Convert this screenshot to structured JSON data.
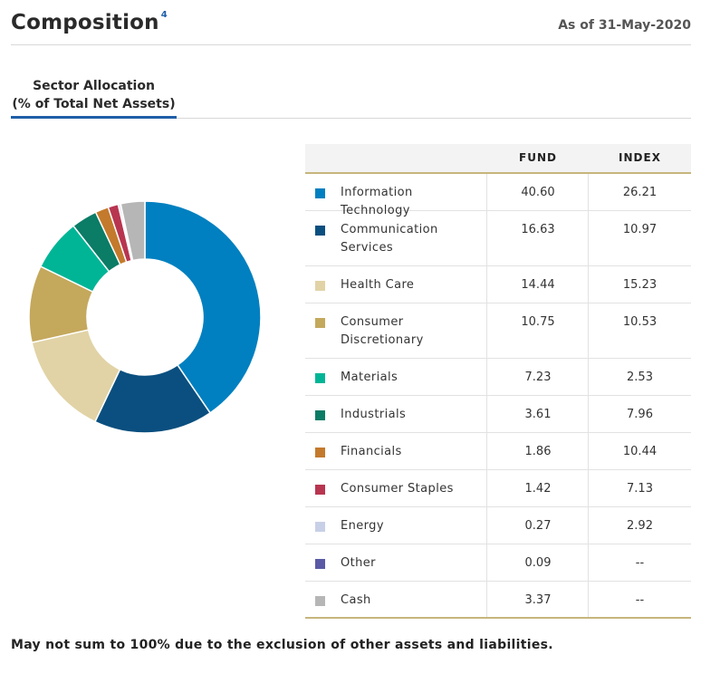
{
  "header": {
    "title": "Composition",
    "footnote_ref": "4",
    "as_of": "As of 31-May-2020"
  },
  "tab": {
    "line1": "Sector Allocation",
    "line2": "(% of Total Net Assets)"
  },
  "table": {
    "col_fund": "FUND",
    "col_index": "INDEX"
  },
  "chart_data": {
    "type": "pie",
    "style": "donut",
    "categories": [
      "Information Technology",
      "Communication Services",
      "Health Care",
      "Consumer Discretionary",
      "Materials",
      "Industrials",
      "Financials",
      "Consumer Staples",
      "Energy",
      "Other",
      "Cash"
    ],
    "series": [
      {
        "values": [
          40.6,
          16.63,
          14.44,
          10.75,
          7.23,
          3.61,
          1.86,
          1.42,
          0.27,
          0.09,
          3.37
        ]
      },
      {
        "values": [
          26.21,
          10.97,
          15.23,
          10.53,
          2.53,
          7.96,
          10.44,
          7.13,
          2.92,
          null,
          null
        ]
      }
    ],
    "colors": [
      "#0080c0",
      "#0a4f7f",
      "#e1d3a6",
      "#c4a85c",
      "#00b596",
      "#0b7c66",
      "#c47a2c",
      "#b83550",
      "#c8d0e8",
      "#5a5aa6",
      "#b6b6b6"
    ]
  },
  "rows": [
    {
      "name": "Information Technology",
      "fund": "40.60",
      "index": "26.21",
      "color": "#0080c0"
    },
    {
      "name": "Communication Services",
      "fund": "16.63",
      "index": "10.97",
      "color": "#0a4f7f"
    },
    {
      "name": "Health Care",
      "fund": "14.44",
      "index": "15.23",
      "color": "#e1d3a6"
    },
    {
      "name": "Consumer Discretionary",
      "fund": "10.75",
      "index": "10.53",
      "color": "#c4a85c"
    },
    {
      "name": "Materials",
      "fund": "7.23",
      "index": "2.53",
      "color": "#00b596"
    },
    {
      "name": "Industrials",
      "fund": "3.61",
      "index": "7.96",
      "color": "#0b7c66"
    },
    {
      "name": "Financials",
      "fund": "1.86",
      "index": "10.44",
      "color": "#c47a2c"
    },
    {
      "name": "Consumer Staples",
      "fund": "1.42",
      "index": "7.13",
      "color": "#b83550"
    },
    {
      "name": "Energy",
      "fund": "0.27",
      "index": "2.92",
      "color": "#c8d0e8"
    },
    {
      "name": "Other",
      "fund": "0.09",
      "index": "--",
      "color": "#5a5aa6"
    },
    {
      "name": "Cash",
      "fund": "3.37",
      "index": "--",
      "color": "#b6b6b6"
    }
  ],
  "footnote": "May not sum to 100% due to the exclusion of other assets and liabilities."
}
